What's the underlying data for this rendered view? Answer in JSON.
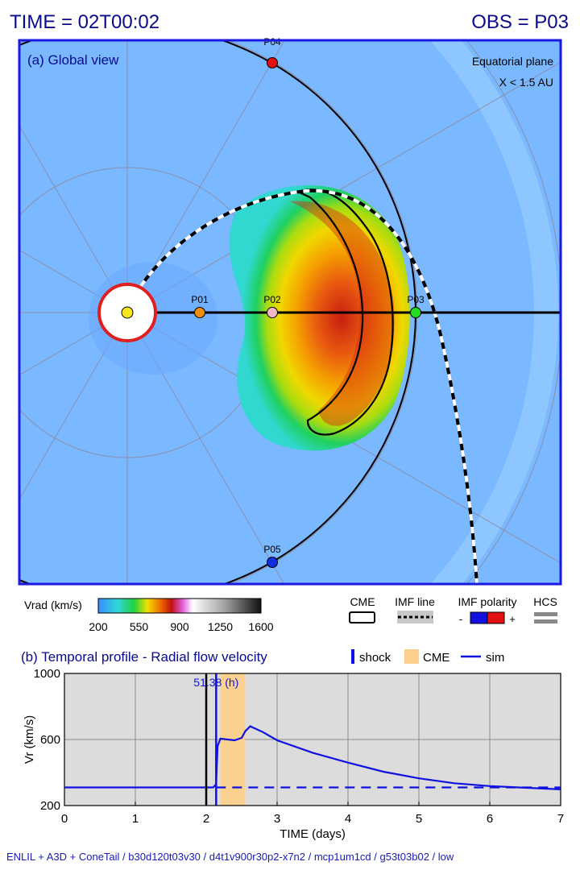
{
  "header": {
    "time": "TIME = 02T00:02",
    "obs": "OBS = P03"
  },
  "global_view": {
    "title": "(a) Global view",
    "plane_label": "Equatorial plane",
    "range_label": "X < 1.5 AU",
    "points": [
      {
        "id": "P01",
        "color": "#f08c10"
      },
      {
        "id": "P02",
        "color": "#f2b8c8"
      },
      {
        "id": "P03",
        "color": "#22dd22"
      },
      {
        "id": "P04",
        "color": "#e01010"
      },
      {
        "id": "P05",
        "color": "#1030e0"
      }
    ],
    "sun_color": "#f5e61e",
    "inner_boundary_color": "#e02020",
    "background_color": "#7ab8ff"
  },
  "colorbar": {
    "title": "Vrad (km/s)",
    "ticks": [
      "200",
      "550",
      "900",
      "1250",
      "1600"
    ]
  },
  "legend_a": {
    "cme": "CME",
    "imf_line": "IMF line",
    "imf_polarity": "IMF polarity",
    "minus": "-",
    "plus": "+",
    "hcs": "HCS",
    "polarity_colors": [
      "#1010e0",
      "#e01010"
    ]
  },
  "profile_panel": {
    "title": "(b) Temporal profile - Radial flow velocity",
    "legend": {
      "shock": "shock",
      "cme": "CME",
      "sim": "sim"
    },
    "shock_label": "51.38 (h)"
  },
  "chart_data": {
    "type": "line",
    "xlabel": "TIME (days)",
    "ylabel": "Vr (km/s)",
    "xlim": [
      0,
      7
    ],
    "ylim": [
      200,
      1000
    ],
    "x_ticks": [
      "0",
      "1",
      "2",
      "3",
      "4",
      "5",
      "6",
      "7"
    ],
    "y_ticks": [
      "200",
      "600",
      "1000"
    ],
    "grid": true,
    "background_color": "#dcdcdc",
    "current_time_days": 2.0,
    "shock_time_days": 2.14,
    "cme_interval_days": [
      2.2,
      2.55
    ],
    "series": [
      {
        "name": "sim",
        "color": "#1010e0",
        "x": [
          0,
          1,
          2.0,
          2.1,
          2.14,
          2.16,
          2.2,
          2.3,
          2.4,
          2.5,
          2.55,
          2.62,
          2.8,
          3.0,
          3.5,
          4.0,
          4.5,
          5.0,
          5.5,
          6.0,
          6.5,
          7.0
        ],
        "y": [
          310,
          310,
          310,
          310,
          330,
          560,
          605,
          600,
          595,
          610,
          650,
          680,
          645,
          595,
          520,
          460,
          405,
          365,
          335,
          318,
          308,
          298
        ]
      },
      {
        "name": "",
        "style": "dashed",
        "color": "#1010e0",
        "x": [
          2.14,
          7.0
        ],
        "y": [
          310,
          310
        ]
      }
    ]
  },
  "footer": "ENLIL + A3D + ConeTail / b30d120t03v30 / d4t1v900r30p2-x7n2 / mcp1um1cd / g53t03b02 / low"
}
